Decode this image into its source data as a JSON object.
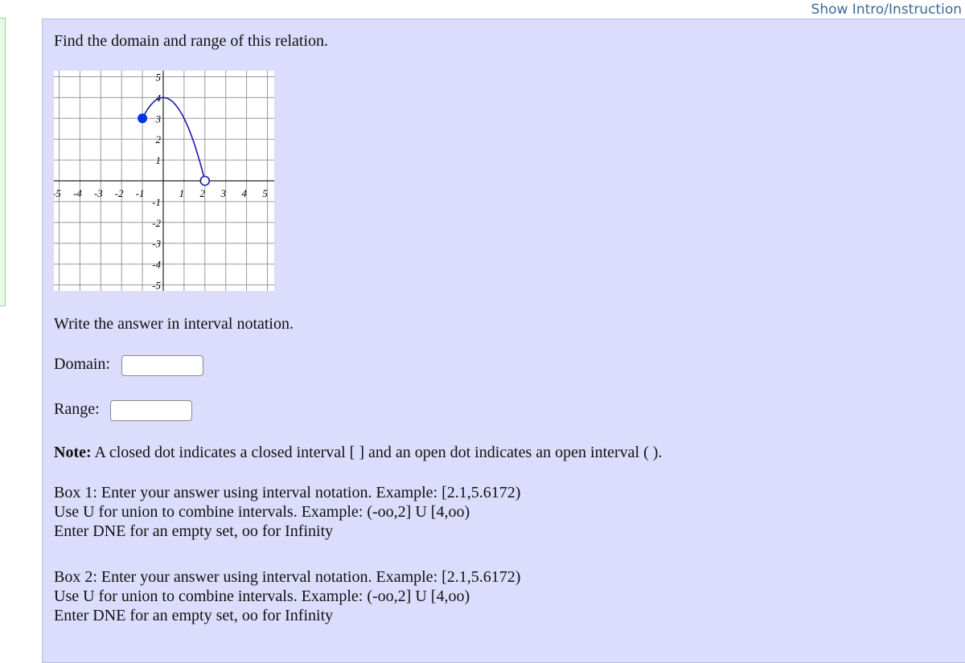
{
  "header": {
    "intro_link": "Show Intro/Instruction"
  },
  "question": {
    "prompt": "Find the domain and range of this relation.",
    "instruction": "Write the answer in interval notation."
  },
  "fields": {
    "domain_label": "Domain:",
    "domain_value": "",
    "range_label": "Range:",
    "range_value": ""
  },
  "note": {
    "bold": "Note:",
    "text": " A closed dot indicates a closed interval [ ] and an open dot indicates an open interval ( )."
  },
  "box1": [
    "Box 1: Enter your answer using interval notation. Example: [2.1,5.6172)",
    "Use U for union to combine intervals. Example: (-oo,2] U [4,oo)",
    "Enter DNE for an empty set, oo for Infinity"
  ],
  "box2": [
    "Box 2: Enter your answer using interval notation. Example: [2.1,5.6172)",
    "Use U for union to combine intervals. Example: (-oo,2] U [4,oo)",
    "Enter DNE for an empty set, oo for Infinity"
  ],
  "chart_data": {
    "type": "line",
    "xlim": [
      -5,
      5
    ],
    "ylim": [
      -5,
      5
    ],
    "grid": true,
    "x_ticks": [
      "-5",
      "-4",
      "-3",
      "-2",
      "-1",
      "1",
      "2",
      "3",
      "4",
      "5"
    ],
    "y_ticks": [
      "5",
      "4",
      "3",
      "2",
      "1",
      "-1",
      "-2",
      "-3",
      "-4",
      "-5"
    ],
    "curve": {
      "equation_points": [
        [
          -1,
          3
        ],
        [
          0,
          4
        ],
        [
          2,
          0
        ]
      ],
      "color": "#1a1aaa"
    },
    "closed_point": [
      -1,
      3
    ],
    "open_point": [
      2,
      0
    ],
    "dot_color": "#0033ee"
  }
}
